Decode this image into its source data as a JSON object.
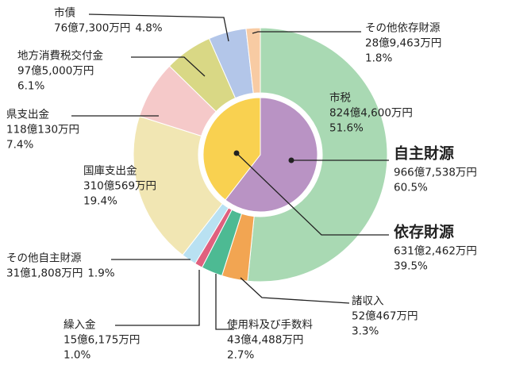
{
  "chart_data": {
    "type": "pie",
    "outer": {
      "categories": [
        "市税",
        "諸収入",
        "使用料及び手数料",
        "繰入金",
        "その他自主財源",
        "国庫支出金",
        "県支出金",
        "地方消費税交付金",
        "市債",
        "その他依存財源"
      ],
      "amounts": [
        "824億4,600万円",
        "52億467万円",
        "43億4,488万円",
        "15億6,175万円",
        "31億1,808万円",
        "310億569万円",
        "118億130万円",
        "97億5,000万円",
        "76億7,300万円",
        "28億9,463万円"
      ],
      "values": [
        51.6,
        3.3,
        2.7,
        1.0,
        1.9,
        19.4,
        7.4,
        6.1,
        4.8,
        1.8
      ],
      "value_labels": [
        "51.6%",
        "3.3%",
        "2.7%",
        "1.0%",
        "1.9%",
        "19.4%",
        "7.4%",
        "6.1%",
        "4.8%",
        "1.8%"
      ],
      "colors": [
        "#a9d9b3",
        "#f2a552",
        "#4dba93",
        "#e0607e",
        "#b9e1f2",
        "#f1e6b3",
        "#f5c9c9",
        "#d9d885",
        "#b3c6e9",
        "#f8cba3"
      ]
    },
    "inner": {
      "categories": [
        "自主財源",
        "依存財源"
      ],
      "amounts": [
        "966億7,538万円",
        "631億2,462万円"
      ],
      "values": [
        60.5,
        39.5
      ],
      "value_labels": [
        "60.5%",
        "39.5%"
      ],
      "colors": [
        "#b993c4",
        "#f9d150"
      ]
    }
  }
}
